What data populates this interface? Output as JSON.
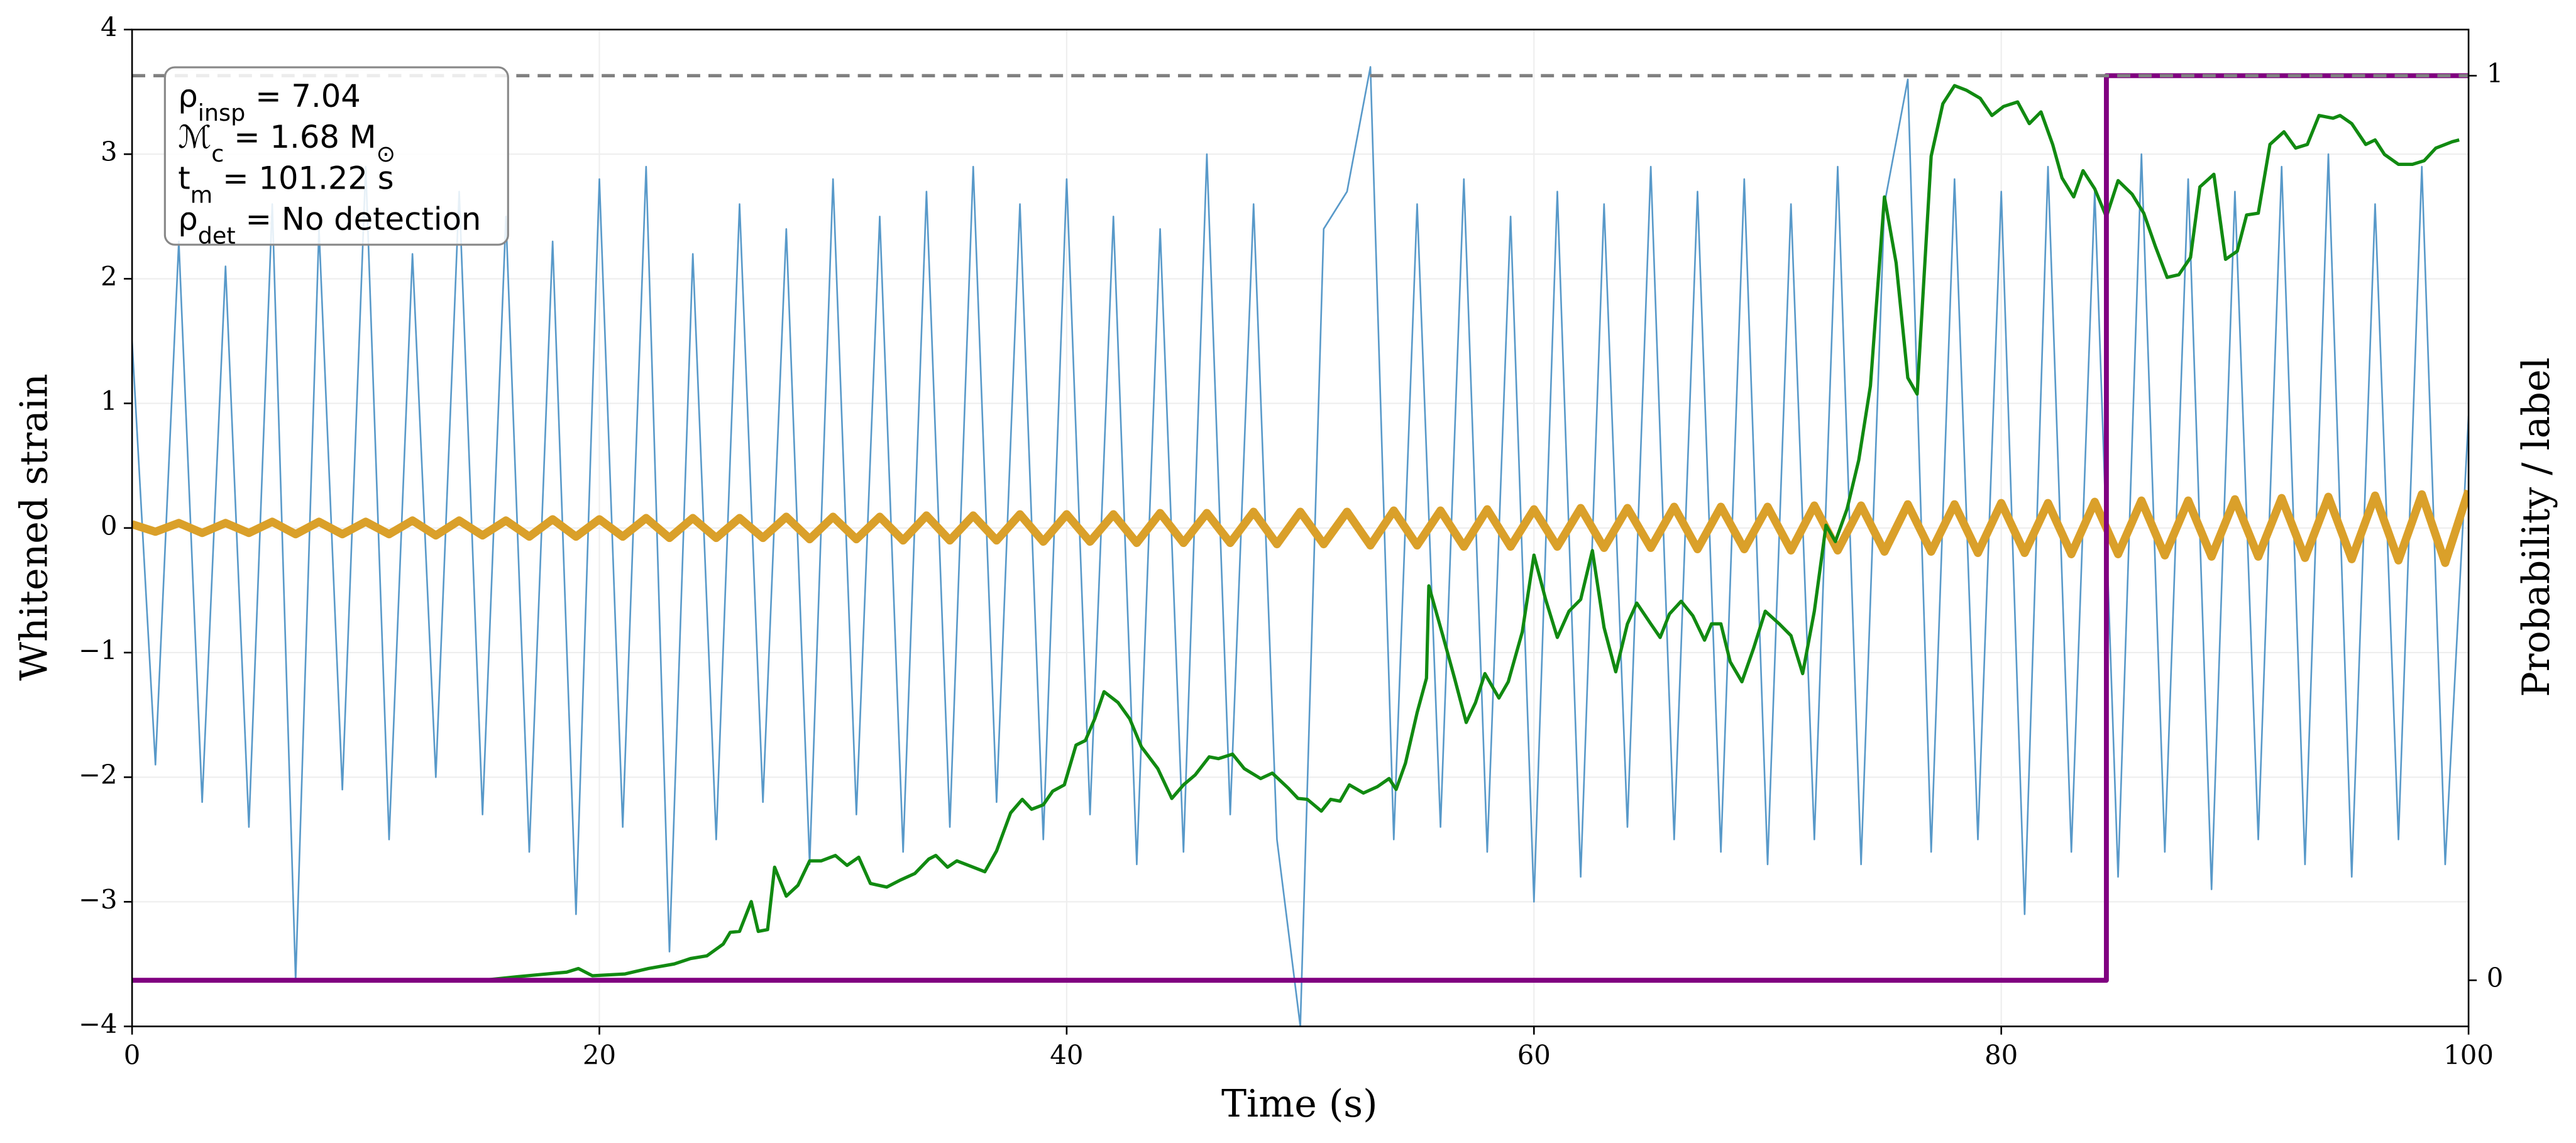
{
  "chart_data": {
    "type": "line",
    "xlabel": "Time (s)",
    "ylabel": "Whitened strain",
    "y2label": "Probability / label",
    "xlim": [
      0,
      100
    ],
    "xticks": [
      0,
      20,
      40,
      60,
      80,
      100
    ],
    "ylim": [
      -4,
      4
    ],
    "yticks": [
      {
        "value": -4,
        "label": "−4"
      },
      {
        "value": -3,
        "label": "−3"
      },
      {
        "value": -2,
        "label": "−2"
      },
      {
        "value": -1,
        "label": "−1"
      },
      0,
      1,
      2,
      3,
      4
    ],
    "y2lim": [
      -0.051,
      1.051
    ],
    "y2ticks": [
      0,
      1
    ],
    "grid": true,
    "hline": {
      "value": 1,
      "axis": "y2",
      "color": "#808080",
      "dashed": true
    },
    "annotation": [
      [
        {
          "text": "ρ"
        },
        {
          "text": "insp",
          "sub": true
        },
        {
          "text": " = 7.04"
        }
      ],
      [
        {
          "text": "ℳ"
        },
        {
          "text": "c",
          "sub": true
        },
        {
          "text": " = 1.68 M"
        },
        {
          "text": "⊙",
          "sub": true
        }
      ],
      [
        {
          "text": "t"
        },
        {
          "text": "m",
          "sub": true
        },
        {
          "text": " = 101.22 s"
        }
      ],
      [
        {
          "text": "ρ"
        },
        {
          "text": "det",
          "sub": true
        },
        {
          "text": " = No detection"
        }
      ]
    ],
    "x": [
      0,
      1,
      2,
      3,
      4,
      5,
      6,
      7,
      8,
      9,
      10,
      11,
      12,
      13,
      14,
      15,
      16,
      17,
      18,
      19,
      20,
      21,
      22,
      23,
      24,
      25,
      26,
      27,
      28,
      29,
      30,
      31,
      32,
      33,
      34,
      35,
      36,
      37,
      38,
      39,
      40,
      41,
      42,
      43,
      44,
      45,
      46,
      47,
      48,
      49,
      50,
      51,
      52,
      53,
      54,
      55,
      56,
      57,
      58,
      59,
      60,
      61,
      62,
      63,
      64,
      65,
      66,
      67,
      68,
      69,
      70,
      71,
      72,
      73,
      74,
      75,
      76,
      77,
      78,
      79,
      80,
      81,
      82,
      83,
      84,
      85,
      86,
      87,
      88,
      89,
      90,
      91,
      92,
      93,
      94,
      95,
      96,
      97,
      98,
      99,
      100
    ],
    "series": [
      {
        "color": "#4f94c6",
        "values": [
          1.5,
          -1.9,
          2.3,
          -2.2,
          2.1,
          -2.4,
          2.6,
          -3.63,
          2.4,
          -2.1,
          2.9,
          -2.5,
          2.2,
          -2.0,
          2.7,
          -2.3,
          2.5,
          -2.6,
          2.3,
          -3.1,
          2.8,
          -2.4,
          2.9,
          -3.4,
          2.2,
          -2.5,
          2.6,
          -2.2,
          2.4,
          -2.7,
          2.8,
          -2.3,
          2.5,
          -2.6,
          2.7,
          -2.4,
          2.9,
          -2.2,
          2.6,
          -2.5,
          2.8,
          -2.3,
          2.5,
          -2.7,
          2.4,
          -2.6,
          3.0,
          -2.3,
          2.6,
          -2.5,
          -4.0,
          2.4,
          2.7,
          3.7,
          -2.5,
          2.6,
          -2.4,
          2.8,
          -2.6,
          2.5,
          -3.0,
          2.7,
          -2.8,
          2.6,
          -2.4,
          2.9,
          -2.5,
          2.7,
          -2.6,
          2.8,
          -2.7,
          2.6,
          -2.5,
          2.9,
          -2.7,
          2.6,
          3.6,
          -2.6,
          2.8,
          -2.5,
          2.7,
          -3.1,
          2.9,
          -2.6,
          2.7,
          -2.8,
          3.0,
          -2.6,
          2.8,
          -2.9,
          2.7,
          -2.5,
          2.9,
          -2.7,
          3.0,
          -2.8,
          2.6,
          -2.5,
          2.9,
          -2.7,
          0.9
        ]
      },
      {
        "color": "#daa02a",
        "values": [
          0.03,
          -0.03,
          0.04,
          -0.04,
          0.04,
          -0.04,
          0.05,
          -0.05,
          0.05,
          -0.05,
          0.05,
          -0.05,
          0.06,
          -0.06,
          0.06,
          -0.06,
          0.06,
          -0.07,
          0.07,
          -0.07,
          0.07,
          -0.07,
          0.08,
          -0.08,
          0.08,
          -0.08,
          0.08,
          -0.08,
          0.09,
          -0.09,
          0.09,
          -0.09,
          0.09,
          -0.1,
          0.1,
          -0.1,
          0.1,
          -0.1,
          0.11,
          -0.11,
          0.11,
          -0.11,
          0.11,
          -0.12,
          0.12,
          -0.12,
          0.12,
          -0.12,
          0.13,
          -0.13,
          0.13,
          -0.13,
          0.13,
          -0.14,
          0.14,
          -0.14,
          0.14,
          -0.15,
          0.15,
          -0.15,
          0.15,
          -0.15,
          0.16,
          -0.16,
          0.16,
          -0.16,
          0.17,
          -0.17,
          0.17,
          -0.17,
          0.17,
          -0.18,
          0.18,
          -0.18,
          0.18,
          -0.19,
          0.19,
          -0.19,
          0.19,
          -0.2,
          0.2,
          -0.2,
          0.2,
          -0.21,
          0.21,
          -0.21,
          0.22,
          -0.22,
          0.22,
          -0.23,
          0.23,
          -0.23,
          0.24,
          -0.24,
          0.25,
          -0.25,
          0.26,
          -0.26,
          0.27,
          -0.28,
          0.3
        ]
      },
      {
        "color": "#118a11",
        "axis": "y2",
        "x": [
          0,
          15,
          16.5,
          18.6,
          19.1,
          19.7,
          21.1,
          22.1,
          23.2,
          23.9,
          24.6,
          25.3,
          25.6,
          26.0,
          26.5,
          26.8,
          27.2,
          27.5,
          28.0,
          28.5,
          29.0,
          29.5,
          30.1,
          30.6,
          31.1,
          31.6,
          32.3,
          32.9,
          33.5,
          34.1,
          34.4,
          34.9,
          35.3,
          35.8,
          36.5,
          37.0,
          37.6,
          38.1,
          38.5,
          39.0,
          39.4,
          39.9,
          40.4,
          40.8,
          41.2,
          41.6,
          42.2,
          42.7,
          43.2,
          43.9,
          44.5,
          45.0,
          45.5,
          46.1,
          46.5,
          47.1,
          47.6,
          48.3,
          48.8,
          49.5,
          49.9,
          50.3,
          50.9,
          51.3,
          51.7,
          52.1,
          52.7,
          53.3,
          53.8,
          54.1,
          54.5,
          55.0,
          55.4,
          55.5,
          56.1,
          56.6,
          57.1,
          57.5,
          57.9,
          58.5,
          58.9,
          59.5,
          60.0,
          60.5,
          61.0,
          61.5,
          62.0,
          62.5,
          63.0,
          63.5,
          64.0,
          64.4,
          65.0,
          65.4,
          65.8,
          66.3,
          66.8,
          67.3,
          67.6,
          68.0,
          68.4,
          68.9,
          69.4,
          69.9,
          70.5,
          71.0,
          71.5,
          72.0,
          72.5,
          72.9,
          73.4,
          73.9,
          74.4,
          75.0,
          75.5,
          76.0,
          76.4,
          77.0,
          77.5,
          78.0,
          78.5,
          79.1,
          79.6,
          80.1,
          80.7,
          81.2,
          81.7,
          82.2,
          82.6,
          83.1,
          83.5,
          84.0,
          84.5,
          85.0,
          85.6,
          86.1,
          86.6,
          87.1,
          87.6,
          88.1,
          88.5,
          89.1,
          89.6,
          90.1,
          90.5,
          91.0,
          91.5,
          92.1,
          92.6,
          93.1,
          93.6,
          94.2,
          94.5,
          95.0,
          95.6,
          96.0,
          96.4,
          97.0,
          97.6,
          98.1,
          98.6,
          99.3,
          99.6
        ],
        "values": [
          0,
          0,
          0.004,
          0.009,
          0.013,
          0.005,
          0.007,
          0.013,
          0.018,
          0.024,
          0.027,
          0.04,
          0.053,
          0.054,
          0.087,
          0.054,
          0.056,
          0.125,
          0.093,
          0.105,
          0.132,
          0.132,
          0.138,
          0.127,
          0.136,
          0.107,
          0.103,
          0.111,
          0.118,
          0.134,
          0.138,
          0.125,
          0.132,
          0.127,
          0.12,
          0.143,
          0.185,
          0.2,
          0.189,
          0.194,
          0.209,
          0.216,
          0.26,
          0.265,
          0.289,
          0.319,
          0.307,
          0.289,
          0.258,
          0.234,
          0.201,
          0.216,
          0.227,
          0.247,
          0.245,
          0.25,
          0.234,
          0.223,
          0.229,
          0.212,
          0.201,
          0.2,
          0.187,
          0.2,
          0.198,
          0.216,
          0.207,
          0.214,
          0.223,
          0.211,
          0.24,
          0.296,
          0.334,
          0.436,
          0.381,
          0.334,
          0.285,
          0.307,
          0.339,
          0.312,
          0.33,
          0.385,
          0.47,
          0.421,
          0.379,
          0.408,
          0.421,
          0.475,
          0.39,
          0.341,
          0.394,
          0.417,
          0.394,
          0.379,
          0.405,
          0.419,
          0.403,
          0.376,
          0.394,
          0.394,
          0.352,
          0.33,
          0.367,
          0.408,
          0.394,
          0.381,
          0.339,
          0.408,
          0.503,
          0.485,
          0.521,
          0.575,
          0.657,
          0.866,
          0.793,
          0.666,
          0.648,
          0.911,
          0.969,
          0.989,
          0.984,
          0.975,
          0.956,
          0.966,
          0.971,
          0.947,
          0.96,
          0.924,
          0.887,
          0.866,
          0.895,
          0.875,
          0.844,
          0.884,
          0.869,
          0.848,
          0.811,
          0.777,
          0.78,
          0.799,
          0.877,
          0.891,
          0.797,
          0.806,
          0.846,
          0.848,
          0.924,
          0.938,
          0.92,
          0.924,
          0.956,
          0.953,
          0.956,
          0.947,
          0.924,
          0.929,
          0.913,
          0.902,
          0.902,
          0.906,
          0.92,
          0.927,
          0.929
        ]
      },
      {
        "color": "#800080",
        "axis": "y2",
        "x": [
          0,
          84.5,
          84.5,
          100
        ],
        "values": [
          0,
          0,
          1,
          1
        ]
      }
    ]
  }
}
